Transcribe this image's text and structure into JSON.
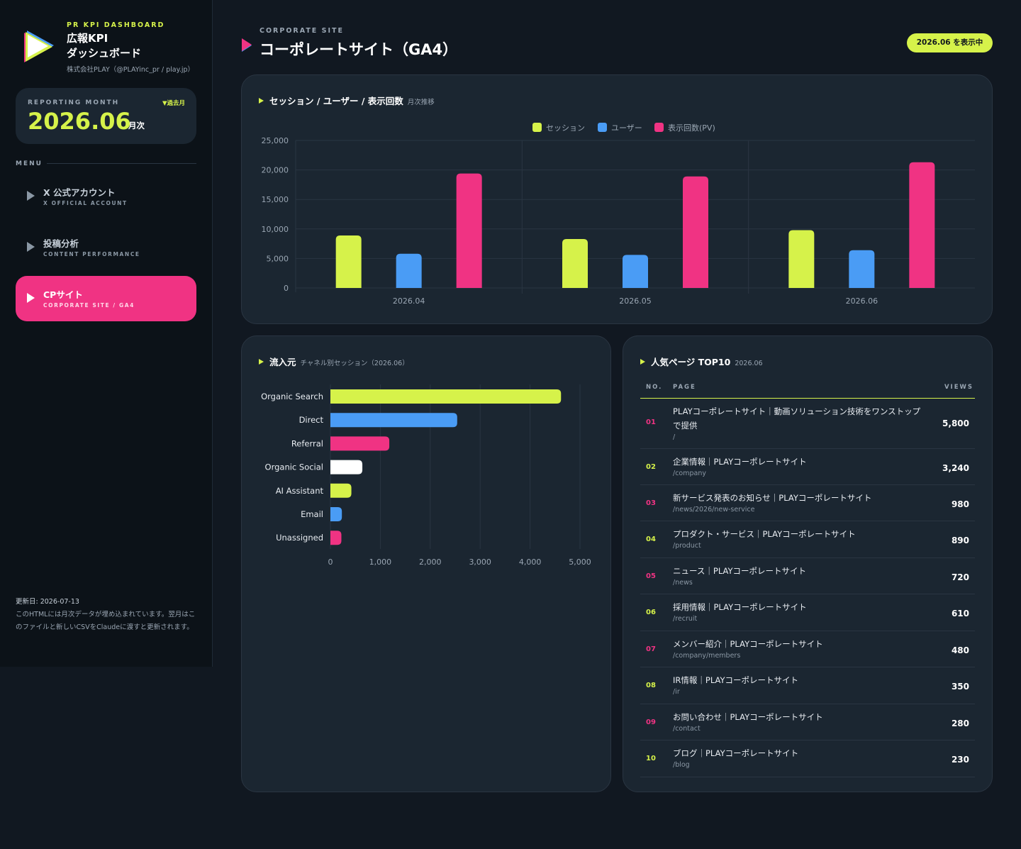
{
  "brand": {
    "kicker": "PR KPI DASHBOARD",
    "title_line1": "広報KPI",
    "title_line2": "ダッシュボード",
    "org": "株式会社PLAY（@PLAYinc_pr / play.jp）"
  },
  "month_card": {
    "label": "REPORTING MONTH",
    "past_label": "▼過去月",
    "value": "2026.06",
    "suffix": "月次"
  },
  "menu": {
    "label": "MENU",
    "items": [
      {
        "jp": "X 公式アカウント",
        "en": "X OFFICIAL ACCOUNT",
        "active": false
      },
      {
        "jp": "投稿分析",
        "en": "CONTENT PERFORMANCE",
        "active": false
      },
      {
        "jp": "CPサイト",
        "en": "CORPORATE SITE / GA4",
        "active": true
      }
    ]
  },
  "footnote": {
    "updated": "更新日: 2026-07-13",
    "text": "このHTMLには月次データが埋め込まれています。翌月はこのファイルと新しいCSVをClaudeに渡すと更新されます。"
  },
  "header": {
    "kicker": "CORPORATE SITE",
    "title": "コーポレートサイト（GA4）",
    "pill": "2026.06 を表示中"
  },
  "colors": {
    "accent_lime": "#d6f24a",
    "accent_blue": "#4a9cf5",
    "accent_pink": "#f03383",
    "white": "#ffffff"
  },
  "sessions_card": {
    "title": "セッション / ユーザー / 表示回数",
    "subtitle": "月次推移"
  },
  "channels_card": {
    "title": "流入元",
    "subtitle": "チャネル別セッション（2026.06）"
  },
  "top_pages": {
    "title": "人気ページ TOP10",
    "subtitle": "2026.06",
    "columns": {
      "no": "NO.",
      "page": "PAGE",
      "views": "VIEWS"
    },
    "rows": [
      {
        "no": "01",
        "title": "PLAYコーポレートサイト｜動画ソリューション技術をワンストップで提供",
        "path": "/",
        "views": "5,800"
      },
      {
        "no": "02",
        "title": "企業情報｜PLAYコーポレートサイト",
        "path": "/company",
        "views": "3,240"
      },
      {
        "no": "03",
        "title": "新サービス発表のお知らせ｜PLAYコーポレートサイト",
        "path": "/news/2026/new-service",
        "views": "980"
      },
      {
        "no": "04",
        "title": "プロダクト・サービス｜PLAYコーポレートサイト",
        "path": "/product",
        "views": "890"
      },
      {
        "no": "05",
        "title": "ニュース｜PLAYコーポレートサイト",
        "path": "/news",
        "views": "720"
      },
      {
        "no": "06",
        "title": "採用情報｜PLAYコーポレートサイト",
        "path": "/recruit",
        "views": "610"
      },
      {
        "no": "07",
        "title": "メンバー紹介｜PLAYコーポレートサイト",
        "path": "/company/members",
        "views": "480"
      },
      {
        "no": "08",
        "title": "IR情報｜PLAYコーポレートサイト",
        "path": "/ir",
        "views": "350"
      },
      {
        "no": "09",
        "title": "お問い合わせ｜PLAYコーポレートサイト",
        "path": "/contact",
        "views": "280"
      },
      {
        "no": "10",
        "title": "ブログ｜PLAYコーポレートサイト",
        "path": "/blog",
        "views": "230"
      }
    ]
  },
  "chart_data": [
    {
      "type": "bar",
      "categories": [
        "2026.04",
        "2026.05",
        "2026.06"
      ],
      "series": [
        {
          "name": "セッション",
          "color": "#d6f24a",
          "values": [
            8900,
            8300,
            9800
          ]
        },
        {
          "name": "ユーザー",
          "color": "#4a9cf5",
          "values": [
            5800,
            5600,
            6400
          ]
        },
        {
          "name": "表示回数(PV)",
          "color": "#f03383",
          "values": [
            19400,
            18900,
            21300
          ]
        }
      ],
      "ylim": [
        0,
        25000
      ],
      "yticks": [
        "0",
        "5,000",
        "10,000",
        "15,000",
        "20,000",
        "25,000"
      ],
      "ytick_values": [
        0,
        5000,
        10000,
        15000,
        20000,
        25000
      ],
      "legend": "top-center",
      "grid": true
    },
    {
      "type": "bar",
      "orientation": "horizontal",
      "categories": [
        "Organic Search",
        "Direct",
        "Referral",
        "Organic Social",
        "AI Assistant",
        "Email",
        "Unassigned"
      ],
      "values": [
        4620,
        2540,
        1180,
        640,
        420,
        230,
        220
      ],
      "colors": [
        "#d6f24a",
        "#4a9cf5",
        "#f03383",
        "#ffffff",
        "#d6f24a",
        "#4a9cf5",
        "#f03383"
      ],
      "xlim": [
        0,
        5000
      ],
      "xticks": [
        "0",
        "1,000",
        "2,000",
        "3,000",
        "4,000",
        "5,000"
      ],
      "xtick_values": [
        0,
        1000,
        2000,
        3000,
        4000,
        5000
      ],
      "grid": true
    }
  ]
}
